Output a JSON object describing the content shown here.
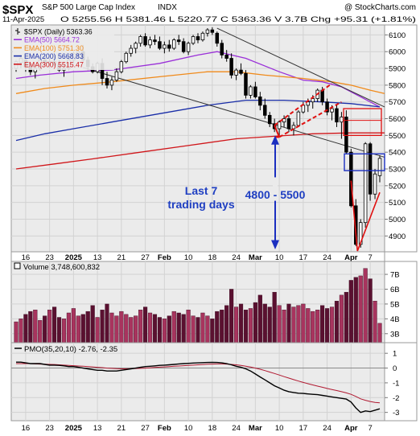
{
  "header": {
    "symbol": "$SPX",
    "name": "S&P 500 Large Cap Index",
    "exchange": "INDX",
    "watermark": "@ StockCharts.com",
    "date": "11-Apr-2025",
    "ohlc": "O 5255.56  H 5381.46  L 5220.77  C 5363.36  V 3.7B  Chg +95.31 (+1.81%)"
  },
  "legend": [
    {
      "label": "$SPX (Daily) 5363.36",
      "color": "#000000",
      "marker": "bar"
    },
    {
      "label": "EMA(50) 5664.72",
      "color": "#9a30d8",
      "marker": "line"
    },
    {
      "label": "EMA(100) 5751.30",
      "color": "#f08a1a",
      "marker": "line"
    },
    {
      "label": "EMA(200) 5668.83",
      "color": "#1a2ea8",
      "marker": "line"
    },
    {
      "label": "EMA(300) 5515.47",
      "color": "#d0161a",
      "marker": "line"
    }
  ],
  "annotations": {
    "last7_line1": "Last 7",
    "last7_line2": "trading days",
    "range": "4800 - 5500"
  },
  "x_labels": [
    "16",
    "23",
    "2025",
    "13",
    "21",
    "27",
    "Feb",
    "10",
    "18",
    "24",
    "Mar",
    "10",
    "17",
    "24",
    "Apr",
    "7"
  ],
  "volume_panel": {
    "label": "Volume 3,748,600,832",
    "ticks": [
      "7B",
      "6B",
      "5B",
      "4B",
      "3B"
    ]
  },
  "pmo_panel": {
    "label": "PMO(35,20,10) -2.76, -2.35",
    "ticks": [
      "1",
      "0",
      "-1",
      "-2",
      "-3"
    ],
    "colors": {
      "pmo": "#000000",
      "signal": "#b01830"
    }
  },
  "chart_data": {
    "type": "candlestick",
    "price_axis": {
      "ticks": [
        4900,
        5000,
        5100,
        5200,
        5300,
        5400,
        5500,
        5600,
        5700,
        5800,
        5900,
        6000,
        6100
      ],
      "ylim": [
        4820,
        6145
      ]
    },
    "candles": [
      [
        5900,
        5950,
        5880,
        5940
      ],
      [
        5935,
        5980,
        5900,
        5960
      ],
      [
        5950,
        5990,
        5880,
        5910
      ],
      [
        5910,
        5930,
        5860,
        5880
      ],
      [
        5880,
        5920,
        5840,
        5900
      ],
      [
        5900,
        5960,
        5890,
        5950
      ],
      [
        5950,
        5980,
        5920,
        5930
      ],
      [
        5930,
        5960,
        5900,
        5940
      ],
      [
        5940,
        5980,
        5910,
        5920
      ],
      [
        5920,
        5950,
        5880,
        5890
      ],
      [
        5890,
        5920,
        5850,
        5900
      ],
      [
        5900,
        5960,
        5890,
        5950
      ],
      [
        5950,
        6000,
        5930,
        5990
      ],
      [
        5990,
        6010,
        5960,
        6000
      ],
      [
        6000,
        6040,
        5940,
        5950
      ],
      [
        5950,
        5970,
        5890,
        5910
      ],
      [
        5910,
        5930,
        5870,
        5880
      ],
      [
        5880,
        5940,
        5870,
        5930
      ],
      [
        5930,
        5960,
        5800,
        5840
      ],
      [
        5840,
        5880,
        5780,
        5800
      ],
      [
        5800,
        5850,
        5770,
        5830
      ],
      [
        5830,
        5900,
        5820,
        5880
      ],
      [
        5880,
        5950,
        5870,
        5940
      ],
      [
        5940,
        6000,
        5930,
        5990
      ],
      [
        5990,
        6040,
        5970,
        6020
      ],
      [
        6020,
        6060,
        5990,
        6050
      ],
      [
        6050,
        6100,
        6030,
        6090
      ],
      [
        6090,
        6110,
        6030,
        6040
      ],
      [
        6040,
        6090,
        6020,
        6070
      ],
      [
        6070,
        6100,
        6040,
        6060
      ],
      [
        6060,
        6090,
        6010,
        6020
      ],
      [
        6020,
        6060,
        5990,
        6040
      ],
      [
        6040,
        6070,
        6000,
        6020
      ],
      [
        6020,
        6080,
        6010,
        6070
      ],
      [
        6070,
        6100,
        6040,
        6060
      ],
      [
        6060,
        6080,
        5990,
        6000
      ],
      [
        6000,
        6060,
        5980,
        6050
      ],
      [
        6050,
        6100,
        6040,
        6090
      ],
      [
        6090,
        6110,
        6050,
        6070
      ],
      [
        6070,
        6120,
        6060,
        6110
      ],
      [
        6110,
        6140,
        6090,
        6130
      ],
      [
        6130,
        6145,
        6100,
        6115
      ],
      [
        6110,
        6120,
        6030,
        6050
      ],
      [
        6050,
        6070,
        5960,
        5980
      ],
      [
        5980,
        6010,
        5940,
        5960
      ],
      [
        5960,
        5990,
        5840,
        5860
      ],
      [
        5860,
        5900,
        5830,
        5890
      ],
      [
        5890,
        5930,
        5860,
        5870
      ],
      [
        5870,
        5890,
        5720,
        5740
      ],
      [
        5740,
        5800,
        5720,
        5790
      ],
      [
        5790,
        5820,
        5720,
        5730
      ],
      [
        5730,
        5760,
        5650,
        5680
      ],
      [
        5680,
        5720,
        5600,
        5620
      ],
      [
        5620,
        5640,
        5550,
        5570
      ],
      [
        5570,
        5600,
        5520,
        5540
      ],
      [
        5540,
        5590,
        5500,
        5580
      ],
      [
        5580,
        5620,
        5550,
        5600
      ],
      [
        5600,
        5620,
        5520,
        5540
      ],
      [
        5540,
        5580,
        5500,
        5560
      ],
      [
        5560,
        5650,
        5550,
        5640
      ],
      [
        5640,
        5700,
        5630,
        5680
      ],
      [
        5680,
        5720,
        5640,
        5700
      ],
      [
        5700,
        5740,
        5660,
        5720
      ],
      [
        5720,
        5780,
        5700,
        5770
      ],
      [
        5770,
        5790,
        5680,
        5700
      ],
      [
        5700,
        5720,
        5620,
        5640
      ],
      [
        5640,
        5680,
        5590,
        5660
      ],
      [
        5660,
        5680,
        5550,
        5580
      ],
      [
        5580,
        5640,
        5480,
        5610
      ],
      [
        5610,
        5650,
        5390,
        5400
      ],
      [
        5400,
        5420,
        5070,
        5080
      ],
      [
        5080,
        5120,
        4840,
        4850
      ],
      [
        4850,
        5000,
        4830,
        4980
      ],
      [
        4980,
        5460,
        4950,
        5450
      ],
      [
        5450,
        5460,
        5110,
        5150
      ],
      [
        5150,
        5300,
        5120,
        5270
      ],
      [
        5260,
        5381,
        5220,
        5363
      ]
    ],
    "ema": [
      {
        "name": "EMA(50)",
        "color": "#9a30d8",
        "points": [
          [
            0,
            5840
          ],
          [
            5,
            5860
          ],
          [
            12,
            5880
          ],
          [
            20,
            5890
          ],
          [
            30,
            5930
          ],
          [
            38,
            5980
          ],
          [
            42,
            6000
          ],
          [
            48,
            5960
          ],
          [
            55,
            5880
          ],
          [
            60,
            5830
          ],
          [
            64,
            5820
          ],
          [
            68,
            5790
          ],
          [
            72,
            5730
          ],
          [
            76,
            5670
          ]
        ]
      },
      {
        "name": "EMA(100)",
        "color": "#f08a1a",
        "points": [
          [
            0,
            5750
          ],
          [
            6,
            5780
          ],
          [
            12,
            5800
          ],
          [
            20,
            5820
          ],
          [
            30,
            5850
          ],
          [
            40,
            5880
          ],
          [
            46,
            5880
          ],
          [
            52,
            5860
          ],
          [
            60,
            5840
          ],
          [
            66,
            5820
          ],
          [
            70,
            5800
          ],
          [
            74,
            5770
          ],
          [
            77,
            5750
          ]
        ]
      },
      {
        "name": "EMA(200)",
        "color": "#1a2ea8",
        "points": [
          [
            0,
            5470
          ],
          [
            6,
            5510
          ],
          [
            12,
            5540
          ],
          [
            20,
            5580
          ],
          [
            30,
            5630
          ],
          [
            40,
            5680
          ],
          [
            48,
            5710
          ],
          [
            56,
            5710
          ],
          [
            64,
            5700
          ],
          [
            70,
            5690
          ],
          [
            76,
            5670
          ]
        ]
      },
      {
        "name": "EMA(300)",
        "color": "#d0161a",
        "points": [
          [
            0,
            5300
          ],
          [
            8,
            5330
          ],
          [
            16,
            5360
          ],
          [
            26,
            5400
          ],
          [
            36,
            5440
          ],
          [
            46,
            5480
          ],
          [
            54,
            5495
          ],
          [
            62,
            5510
          ],
          [
            70,
            5515
          ],
          [
            77,
            5515
          ]
        ]
      }
    ],
    "trendlines": [
      {
        "color": "#333333",
        "points": [
          [
            14,
            5905
          ],
          [
            77,
            5370
          ]
        ]
      },
      {
        "color": "#333333",
        "points": [
          [
            42,
            6140
          ],
          [
            77,
            5670
          ]
        ]
      }
    ],
    "red_dashed_channel": [
      [
        [
          54,
          5560
        ],
        [
          66,
          5810
        ]
      ],
      [
        [
          55,
          5490
        ],
        [
          68,
          5700
        ]
      ]
    ],
    "volume_bars": [
      3.8,
      4.0,
      4.3,
      4.5,
      4.6,
      3.9,
      4.2,
      4.6,
      4.8,
      4.1,
      4.0,
      4.4,
      4.7,
      4.2,
      4.3,
      4.5,
      4.9,
      4.1,
      4.6,
      5.0,
      4.4,
      4.2,
      4.5,
      4.3,
      4.1,
      4.2,
      4.6,
      4.8,
      4.4,
      4.3,
      4.1,
      4.0,
      4.2,
      4.5,
      4.4,
      4.3,
      4.6,
      4.2,
      4.1,
      4.4,
      4.2,
      4.0,
      4.5,
      4.6,
      4.9,
      6.0,
      4.8,
      5.0,
      4.6,
      4.7,
      5.1,
      5.6,
      5.0,
      4.8,
      5.8,
      4.9,
      4.6,
      5.0,
      4.8,
      4.9,
      5.0,
      4.7,
      4.5,
      4.6,
      4.9,
      4.7,
      4.8,
      5.2,
      5.6,
      5.8,
      6.6,
      6.8,
      6.9,
      7.4,
      6.7,
      5.2,
      3.7
    ],
    "volume_ylim": [
      2.5,
      7.6
    ],
    "pmo": {
      "ylim": [
        -3.4,
        1.5
      ],
      "pmo": [
        0.4,
        0.4,
        0.35,
        0.3,
        0.3,
        0.3,
        0.25,
        0.2,
        0.2,
        0.18,
        0.15,
        0.1,
        0.1,
        0.05,
        0.0,
        -0.05,
        -0.1,
        -0.15,
        -0.15,
        -0.2,
        -0.2,
        -0.2,
        -0.15,
        -0.1,
        -0.05,
        0.0,
        0.05,
        0.1,
        0.12,
        0.15,
        0.18,
        0.2,
        0.22,
        0.25,
        0.28,
        0.3,
        0.32,
        0.34,
        0.35,
        0.37,
        0.38,
        0.39,
        0.38,
        0.35,
        0.3,
        0.22,
        0.12,
        0.05,
        -0.05,
        -0.2,
        -0.4,
        -0.6,
        -0.8,
        -1.0,
        -1.2,
        -1.35,
        -1.5,
        -1.6,
        -1.65,
        -1.7,
        -1.72,
        -1.75,
        -1.78,
        -1.8,
        -1.85,
        -1.9,
        -1.95,
        -2.0,
        -2.05,
        -2.1,
        -2.3,
        -2.7,
        -3.0,
        -2.9,
        -2.95,
        -2.85,
        -2.76
      ],
      "signal": [
        0.3,
        0.3,
        0.3,
        0.3,
        0.28,
        0.27,
        0.26,
        0.25,
        0.24,
        0.22,
        0.2,
        0.18,
        0.16,
        0.14,
        0.12,
        0.1,
        0.08,
        0.05,
        0.03,
        0.0,
        -0.02,
        -0.04,
        -0.05,
        -0.05,
        -0.04,
        -0.03,
        -0.02,
        0.0,
        0.02,
        0.04,
        0.06,
        0.08,
        0.1,
        0.12,
        0.14,
        0.16,
        0.18,
        0.2,
        0.22,
        0.24,
        0.26,
        0.27,
        0.28,
        0.28,
        0.27,
        0.25,
        0.22,
        0.18,
        0.13,
        0.07,
        0.0,
        -0.08,
        -0.17,
        -0.27,
        -0.37,
        -0.47,
        -0.58,
        -0.68,
        -0.78,
        -0.88,
        -0.97,
        -1.06,
        -1.14,
        -1.22,
        -1.3,
        -1.38,
        -1.45,
        -1.52,
        -1.6,
        -1.68,
        -1.78,
        -1.92,
        -2.08,
        -2.18,
        -2.26,
        -2.32,
        -2.35
      ]
    }
  }
}
